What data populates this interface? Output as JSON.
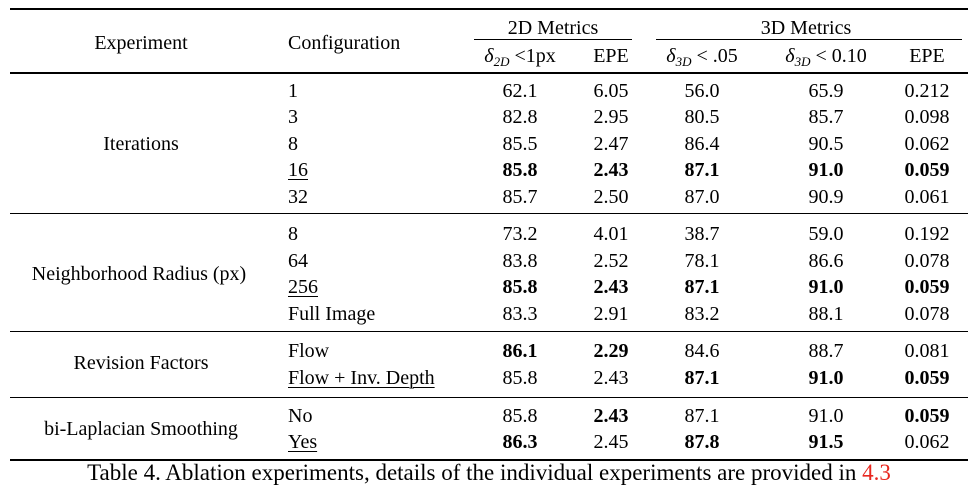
{
  "header": {
    "experiment": "Experiment",
    "configuration": "Configuration",
    "group_2d": "2D Metrics",
    "group_3d": "3D Metrics",
    "col_2d_delta": {
      "symbol": "δ",
      "sub": "2D",
      "rel": " <1px"
    },
    "col_2d_epe": "EPE",
    "col_3d_delta05": {
      "symbol": "δ",
      "sub": "3D",
      "rel": " < .05"
    },
    "col_3d_delta10": {
      "symbol": "δ",
      "sub": "3D",
      "rel": " < 0.10"
    },
    "col_3d_epe": "EPE"
  },
  "groups": [
    {
      "name": "Iterations",
      "rows": [
        {
          "config": "1",
          "config_underline": false,
          "values": [
            "62.1",
            "6.05",
            "56.0",
            "65.9",
            "0.212"
          ],
          "bold": [
            false,
            false,
            false,
            false,
            false
          ]
        },
        {
          "config": "3",
          "config_underline": false,
          "values": [
            "82.8",
            "2.95",
            "80.5",
            "85.7",
            "0.098"
          ],
          "bold": [
            false,
            false,
            false,
            false,
            false
          ]
        },
        {
          "config": "8",
          "config_underline": false,
          "values": [
            "85.5",
            "2.47",
            "86.4",
            "90.5",
            "0.062"
          ],
          "bold": [
            false,
            false,
            false,
            false,
            false
          ]
        },
        {
          "config": "16",
          "config_underline": true,
          "values": [
            "85.8",
            "2.43",
            "87.1",
            "91.0",
            "0.059"
          ],
          "bold": [
            true,
            true,
            true,
            true,
            true
          ]
        },
        {
          "config": "32",
          "config_underline": false,
          "values": [
            "85.7",
            "2.50",
            "87.0",
            "90.9",
            "0.061"
          ],
          "bold": [
            false,
            false,
            false,
            false,
            false
          ]
        }
      ]
    },
    {
      "name": "Neighborhood Radius (px)",
      "rows": [
        {
          "config": "8",
          "config_underline": false,
          "values": [
            "73.2",
            "4.01",
            "38.7",
            "59.0",
            "0.192"
          ],
          "bold": [
            false,
            false,
            false,
            false,
            false
          ]
        },
        {
          "config": "64",
          "config_underline": false,
          "values": [
            "83.8",
            "2.52",
            "78.1",
            "86.6",
            "0.078"
          ],
          "bold": [
            false,
            false,
            false,
            false,
            false
          ]
        },
        {
          "config": "256",
          "config_underline": true,
          "values": [
            "85.8",
            "2.43",
            "87.1",
            "91.0",
            "0.059"
          ],
          "bold": [
            true,
            true,
            true,
            true,
            true
          ]
        },
        {
          "config": "Full Image",
          "config_underline": false,
          "values": [
            "83.3",
            "2.91",
            "83.2",
            "88.1",
            "0.078"
          ],
          "bold": [
            false,
            false,
            false,
            false,
            false
          ]
        }
      ]
    },
    {
      "name": "Revision Factors",
      "rows": [
        {
          "config": "Flow",
          "config_underline": false,
          "values": [
            "86.1",
            "2.29",
            "84.6",
            "88.7",
            "0.081"
          ],
          "bold": [
            true,
            true,
            false,
            false,
            false
          ]
        },
        {
          "config": "Flow + Inv. Depth",
          "config_underline": true,
          "values": [
            "85.8",
            "2.43",
            "87.1",
            "91.0",
            "0.059"
          ],
          "bold": [
            false,
            false,
            true,
            true,
            true
          ]
        }
      ]
    },
    {
      "name": "bi-Laplacian Smoothing",
      "rows": [
        {
          "config": "No",
          "config_underline": false,
          "values": [
            "85.8",
            "2.43",
            "87.1",
            "91.0",
            "0.059"
          ],
          "bold": [
            false,
            true,
            false,
            false,
            true
          ]
        },
        {
          "config": "Yes",
          "config_underline": true,
          "values": [
            "86.3",
            "2.45",
            "87.8",
            "91.5",
            "0.062"
          ],
          "bold": [
            true,
            false,
            true,
            true,
            false
          ]
        }
      ]
    }
  ],
  "caption": {
    "text": "Table 4. Ablation experiments, details of the individual experiments are provided in ",
    "ref": "4.3"
  }
}
